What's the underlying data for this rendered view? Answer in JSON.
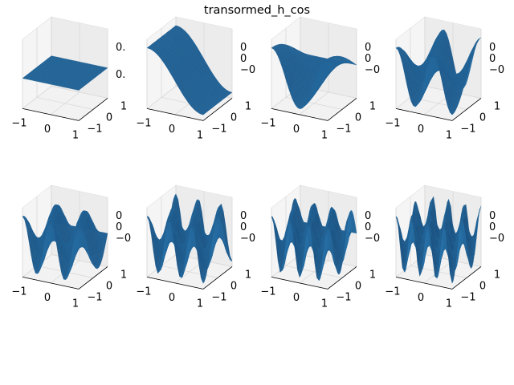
{
  "figure": {
    "title": "transormed_h_cos"
  },
  "chart_data": [
    {
      "type": "surface",
      "panel": 1,
      "harmonic": 0,
      "amplitude_label": "0.",
      "xlim": [
        -1,
        1
      ],
      "ylim": [
        -1,
        1
      ],
      "x_ticks": [
        "−1",
        "0",
        "1"
      ],
      "y_ticks": [
        "1",
        "0",
        "−1"
      ],
      "z_ticks": [
        "0.",
        "0."
      ],
      "color": "#1f77b4"
    },
    {
      "type": "surface",
      "panel": 2,
      "harmonic": 1,
      "xlim": [
        -1,
        1
      ],
      "ylim": [
        -1,
        1
      ],
      "x_ticks": [
        "−1",
        "0",
        "1"
      ],
      "y_ticks": [
        "1",
        "0",
        "−1"
      ],
      "z_ticks": [
        "0",
        "0",
        "−0"
      ],
      "color": "#1f77b4"
    },
    {
      "type": "surface",
      "panel": 3,
      "harmonic": 2,
      "xlim": [
        -1,
        1
      ],
      "ylim": [
        -1,
        1
      ],
      "x_ticks": [
        "−1",
        "0",
        "1"
      ],
      "y_ticks": [
        "1",
        "0",
        "−1"
      ],
      "z_ticks": [
        "0",
        "0",
        "−0"
      ],
      "color": "#1f77b4"
    },
    {
      "type": "surface",
      "panel": 4,
      "harmonic": 3,
      "xlim": [
        -1,
        1
      ],
      "ylim": [
        -1,
        1
      ],
      "x_ticks": [
        "−1",
        "0",
        "1"
      ],
      "y_ticks": [
        "1",
        "0",
        "−1"
      ],
      "z_ticks": [
        "0",
        "0",
        "−0"
      ],
      "color": "#1f77b4"
    },
    {
      "type": "surface",
      "panel": 5,
      "harmonic": 4,
      "xlim": [
        -1,
        1
      ],
      "ylim": [
        -1,
        1
      ],
      "x_ticks": [
        "−1",
        "0",
        "1"
      ],
      "y_ticks": [
        "1",
        "0",
        "−1"
      ],
      "z_ticks": [
        "0",
        "0",
        "−0"
      ],
      "color": "#1f77b4"
    },
    {
      "type": "surface",
      "panel": 6,
      "harmonic": 5,
      "xlim": [
        -1,
        1
      ],
      "ylim": [
        -1,
        1
      ],
      "x_ticks": [
        "−1",
        "0",
        "1"
      ],
      "y_ticks": [
        "1",
        "0",
        "−1"
      ],
      "z_ticks": [
        "0",
        "0",
        "−0"
      ],
      "color": "#1f77b4"
    },
    {
      "type": "surface",
      "panel": 7,
      "harmonic": 6,
      "xlim": [
        -1,
        1
      ],
      "ylim": [
        -1,
        1
      ],
      "x_ticks": [
        "−1",
        "0",
        "1"
      ],
      "y_ticks": [
        "1",
        "0",
        "−1"
      ],
      "z_ticks": [
        "0",
        "0",
        "−0"
      ],
      "color": "#1f77b4"
    },
    {
      "type": "surface",
      "panel": 8,
      "harmonic": 7,
      "xlim": [
        -1,
        1
      ],
      "ylim": [
        -1,
        1
      ],
      "x_ticks": [
        "−1",
        "0",
        "1"
      ],
      "y_ticks": [
        "1",
        "0",
        "−1"
      ],
      "z_ticks": [
        "0",
        "0",
        "−0"
      ],
      "color": "#1f77b4"
    }
  ]
}
